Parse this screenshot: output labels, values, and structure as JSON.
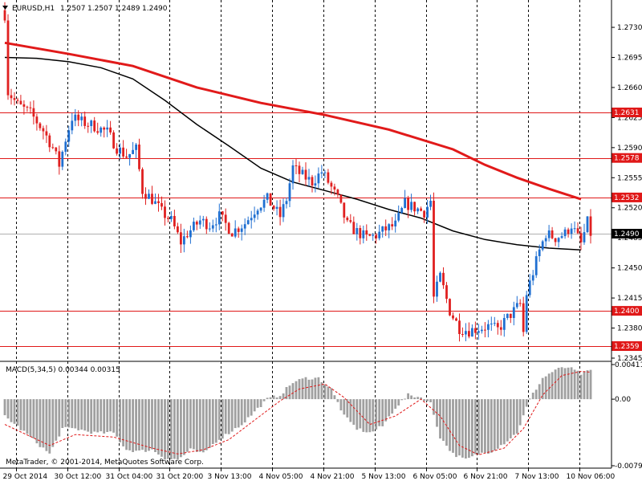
{
  "header": {
    "symbol_label": "EURUSD,H1",
    "ohlc": [
      "1.2507",
      "1.2507",
      "1.2489",
      "1.2490"
    ]
  },
  "colors": {
    "bull": "#1f6fd1",
    "bear": "#e02020",
    "ma_fast": "#e11a1a",
    "ma_slow": "#000000",
    "level_line": "#e01818",
    "price_tag": "#e01818",
    "current_tag": "#000000",
    "macd_hist": "#a0a0a0",
    "macd_signal": "#e01818",
    "grid": "#000000"
  },
  "chart_data": [
    {
      "type": "candlestick",
      "title": "EURUSD,H1",
      "ylim": [
        1.2345,
        1.2745
      ],
      "y_ticks": [
        "1.2730",
        "1.2695",
        "1.2660",
        "1.2625",
        "1.2590",
        "1.2555",
        "1.2520",
        "1.2485",
        "1.2450",
        "1.2415",
        "1.2380",
        "1.2345"
      ],
      "x_tick_labels": [
        "29 Oct 2014",
        "30 Oct 12:00",
        "31 Oct 04:00",
        "31 Oct 20:00",
        "3 Nov 13:00",
        "4 Nov 05:00",
        "4 Nov 21:00",
        "5 Nov 13:00",
        "6 Nov 05:00",
        "6 Nov 21:00",
        "7 Nov 13:00",
        "10 Nov 06:00"
      ],
      "x_tick_index": [
        0,
        16,
        32,
        48,
        64,
        80,
        96,
        112,
        128,
        144,
        160,
        176
      ],
      "bar_count": 184,
      "price_levels": [
        {
          "label": "1.2631",
          "value": 1.2631
        },
        {
          "label": "1.2578",
          "value": 1.2578
        },
        {
          "label": "1.2532",
          "value": 1.2532
        },
        {
          "label": "1.2400",
          "value": 1.24
        },
        {
          "label": "1.2359",
          "value": 1.2359
        }
      ],
      "current_price": {
        "label": "1.2490",
        "value": 1.249
      },
      "series": [
        {
          "kind": "ma",
          "points": [
            [
              0,
              1.2712
            ],
            [
              20,
              1.2699
            ],
            [
              40,
              1.2685
            ],
            [
              60,
              1.266
            ],
            [
              80,
              1.2642
            ],
            [
              100,
              1.2628
            ],
            [
              120,
              1.2611
            ],
            [
              140,
              1.2588
            ],
            [
              150,
              1.257
            ],
            [
              160,
              1.2555
            ],
            [
              170,
              1.2542
            ],
            [
              180,
              1.253
            ]
          ]
        },
        {
          "kind": "ma",
          "points": [
            [
              0,
              1.2695
            ],
            [
              10,
              1.2694
            ],
            [
              20,
              1.269
            ],
            [
              30,
              1.2683
            ],
            [
              40,
              1.267
            ],
            [
              50,
              1.2645
            ],
            [
              60,
              1.2617
            ],
            [
              70,
              1.2592
            ],
            [
              80,
              1.2566
            ],
            [
              90,
              1.255
            ],
            [
              100,
              1.254
            ],
            [
              110,
              1.253
            ],
            [
              120,
              1.2518
            ],
            [
              130,
              1.2508
            ],
            [
              140,
              1.2493
            ],
            [
              150,
              1.2483
            ],
            [
              160,
              1.2477
            ],
            [
              170,
              1.2473
            ],
            [
              180,
              1.2471
            ]
          ]
        }
      ],
      "close_path": [
        [
          0,
          1.2745
        ],
        [
          1,
          1.2655
        ],
        [
          4,
          1.264
        ],
        [
          8,
          1.263
        ],
        [
          12,
          1.261
        ],
        [
          15,
          1.259
        ],
        [
          17,
          1.257
        ],
        [
          19,
          1.26
        ],
        [
          21,
          1.2625
        ],
        [
          24,
          1.262
        ],
        [
          28,
          1.2615
        ],
        [
          32,
          1.2608
        ],
        [
          35,
          1.259
        ],
        [
          38,
          1.258
        ],
        [
          41,
          1.2588
        ],
        [
          43,
          1.254
        ],
        [
          46,
          1.253
        ],
        [
          49,
          1.2515
        ],
        [
          52,
          1.2505
        ],
        [
          55,
          1.248
        ],
        [
          57,
          1.249
        ],
        [
          61,
          1.2505
        ],
        [
          64,
          1.25
        ],
        [
          67,
          1.251
        ],
        [
          71,
          1.2492
        ],
        [
          75,
          1.2502
        ],
        [
          79,
          1.2522
        ],
        [
          82,
          1.253
        ],
        [
          86,
          1.251
        ],
        [
          88,
          1.253
        ],
        [
          90,
          1.2567
        ],
        [
          92,
          1.256
        ],
        [
          96,
          1.255
        ],
        [
          99,
          1.2562
        ],
        [
          101,
          1.255
        ],
        [
          104,
          1.253
        ],
        [
          107,
          1.25
        ],
        [
          110,
          1.2492
        ],
        [
          113,
          1.2485
        ],
        [
          116,
          1.2488
        ],
        [
          119,
          1.2495
        ],
        [
          122,
          1.25
        ],
        [
          125,
          1.2525
        ],
        [
          128,
          1.252
        ],
        [
          131,
          1.2515
        ],
        [
          133,
          1.2528
        ],
        [
          134,
          1.2415
        ],
        [
          136,
          1.244
        ],
        [
          139,
          1.24
        ],
        [
          142,
          1.238
        ],
        [
          145,
          1.2377
        ],
        [
          148,
          1.238
        ],
        [
          151,
          1.2382
        ],
        [
          154,
          1.2378
        ],
        [
          157,
          1.2392
        ],
        [
          159,
          1.24
        ],
        [
          161,
          1.2408
        ],
        [
          162,
          1.2375
        ],
        [
          163,
          1.242
        ],
        [
          165,
          1.2445
        ],
        [
          167,
          1.247
        ],
        [
          169,
          1.249
        ],
        [
          172,
          1.2485
        ],
        [
          175,
          1.249
        ],
        [
          177,
          1.25
        ],
        [
          180,
          1.2478
        ],
        [
          182,
          1.2503
        ],
        [
          183,
          1.249
        ]
      ],
      "macd": {
        "label": "MACD(5,34,5) 0.00344 0.00315",
        "y_ticks": [
          "0.00411",
          "0.00",
          "-0.0079"
        ],
        "ylim": [
          -0.0079,
          0.00411
        ],
        "hist_path": [
          [
            0,
            -0.002
          ],
          [
            8,
            -0.0045
          ],
          [
            14,
            -0.0065
          ],
          [
            18,
            -0.0035
          ],
          [
            22,
            -0.0035
          ],
          [
            28,
            -0.004
          ],
          [
            34,
            -0.004
          ],
          [
            38,
            -0.006
          ],
          [
            42,
            -0.0062
          ],
          [
            46,
            -0.006
          ],
          [
            50,
            -0.007
          ],
          [
            54,
            -0.0072
          ],
          [
            58,
            -0.006
          ],
          [
            62,
            -0.0065
          ],
          [
            66,
            -0.005
          ],
          [
            70,
            -0.004
          ],
          [
            74,
            -0.003
          ],
          [
            78,
            -0.0015
          ],
          [
            82,
            0.0
          ],
          [
            86,
            0.0005
          ],
          [
            90,
            0.002
          ],
          [
            94,
            0.0025
          ],
          [
            98,
            0.0025
          ],
          [
            102,
            0.0012
          ],
          [
            106,
            -0.002
          ],
          [
            110,
            -0.0035
          ],
          [
            114,
            -0.004
          ],
          [
            118,
            -0.0032
          ],
          [
            122,
            -0.001
          ],
          [
            126,
            0.0005
          ],
          [
            130,
            0.0002
          ],
          [
            133,
            -0.0005
          ],
          [
            136,
            -0.0045
          ],
          [
            140,
            -0.0065
          ],
          [
            144,
            -0.0072
          ],
          [
            148,
            -0.0065
          ],
          [
            152,
            -0.0062
          ],
          [
            156,
            -0.0052
          ],
          [
            160,
            -0.004
          ],
          [
            164,
            0.0
          ],
          [
            168,
            0.0025
          ],
          [
            172,
            0.0035
          ],
          [
            176,
            0.0038
          ],
          [
            180,
            0.003
          ],
          [
            183,
            0.0034
          ]
        ],
        "signal_path": [
          [
            0,
            -0.003
          ],
          [
            14,
            -0.0055
          ],
          [
            22,
            -0.0042
          ],
          [
            34,
            -0.0045
          ],
          [
            46,
            -0.0058
          ],
          [
            54,
            -0.0065
          ],
          [
            62,
            -0.006
          ],
          [
            70,
            -0.0048
          ],
          [
            78,
            -0.0025
          ],
          [
            86,
            -0.0002
          ],
          [
            92,
            0.0012
          ],
          [
            100,
            0.0018
          ],
          [
            106,
            0.0002
          ],
          [
            114,
            -0.003
          ],
          [
            122,
            -0.002
          ],
          [
            130,
            0.0
          ],
          [
            136,
            -0.002
          ],
          [
            142,
            -0.0055
          ],
          [
            148,
            -0.0066
          ],
          [
            156,
            -0.0058
          ],
          [
            162,
            -0.0035
          ],
          [
            168,
            0.0005
          ],
          [
            174,
            0.0028
          ],
          [
            180,
            0.0033
          ],
          [
            183,
            0.0032
          ]
        ]
      }
    }
  ],
  "footer": {
    "copyright": "MetaTrader, © 2001-2014, MetaQuotes Software Corp."
  }
}
